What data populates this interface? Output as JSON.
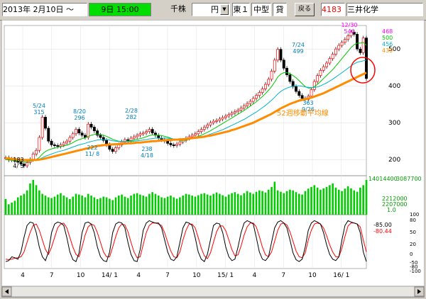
{
  "toolbar": {
    "date": "2013年 2月10日 ～",
    "time": "9日 15:00",
    "unit": "千株",
    "currency": "円",
    "market": "東１",
    "size": "中型",
    "loan": "貸",
    "back": "戻る",
    "code": "4183",
    "name": "三井化学"
  },
  "colors": {
    "price_up": "#ff0000",
    "ma_short": "#ff00ff",
    "ma_13": "#00c800",
    "ma_26": "#00b4c8",
    "ma_52": "#ff8c00",
    "volume": "#00cc00",
    "stoch_k": "#000000",
    "stoch_d": "#ff0000",
    "time_box": "#00dd00"
  },
  "chart_data": {
    "type": "line",
    "price_axis": {
      "ticks": [
        "500",
        "400",
        "300",
        "200"
      ],
      "range": [
        160,
        560
      ]
    },
    "legend_values": [
      "468",
      "500",
      "456",
      "439"
    ],
    "annotations": [
      {
        "date": "4/ 5",
        "price": "183"
      },
      {
        "date": "5/24",
        "price": "315"
      },
      {
        "date": "8/20",
        "price": "296"
      },
      {
        "date": "11/ 8",
        "price": "222"
      },
      {
        "date": "2/28",
        "price": "282"
      },
      {
        "date": "4/18",
        "price": "238"
      },
      {
        "date": "7/24",
        "price": "499"
      },
      {
        "date": "9/26",
        "price": "363"
      },
      {
        "date": "12/30",
        "price": "546"
      }
    ],
    "ma_label": "52週移動平均線",
    "prices": [
      205,
      199,
      201,
      195,
      193,
      188,
      183,
      192,
      200,
      215,
      225,
      260,
      315,
      285,
      250,
      240,
      238,
      236,
      240,
      245,
      250,
      260,
      270,
      282,
      272,
      266,
      260,
      296,
      288,
      278,
      266,
      260,
      252,
      240,
      228,
      222,
      232,
      240,
      248,
      254,
      252,
      258,
      262,
      266,
      270,
      272,
      276,
      282,
      272,
      266,
      258,
      254,
      250,
      244,
      240,
      238,
      242,
      248,
      252,
      258,
      262,
      266,
      270,
      276,
      282,
      288,
      294,
      300,
      304,
      306,
      310,
      314,
      318,
      322,
      326,
      330,
      334,
      340,
      346,
      352,
      358,
      366,
      374,
      382,
      392,
      404,
      418,
      440,
      470,
      499,
      470,
      448,
      430,
      412,
      398,
      385,
      374,
      366,
      363,
      372,
      390,
      412,
      428,
      442,
      452,
      462,
      474,
      486,
      500,
      510,
      518,
      526,
      536,
      546,
      540,
      500,
      490,
      530,
      420
    ],
    "ma13": [
      200,
      199,
      198,
      197,
      196,
      195,
      194,
      194,
      195,
      197,
      200,
      206,
      215,
      222,
      226,
      229,
      231,
      233,
      235,
      237,
      239,
      242,
      246,
      251,
      254,
      257,
      259,
      263,
      266,
      268,
      269,
      268,
      266,
      263,
      259,
      255,
      252,
      250,
      249,
      249,
      250,
      251,
      253,
      255,
      257,
      259,
      262,
      265,
      267,
      267,
      266,
      265,
      263,
      261,
      258,
      255,
      253,
      252,
      252,
      253,
      255,
      257,
      260,
      263,
      266,
      270,
      274,
      278,
      283,
      288,
      293,
      298,
      303,
      308,
      313,
      318,
      323,
      328,
      333,
      339,
      345,
      351,
      357,
      364,
      371,
      379,
      388,
      398,
      410,
      424,
      432,
      436,
      436,
      433,
      428,
      422,
      414,
      406,
      398,
      394,
      394,
      398,
      404,
      412,
      420,
      428,
      436,
      444,
      454,
      464,
      474,
      484,
      494,
      504,
      512,
      516,
      516,
      518,
      510
    ],
    "ma26": [
      205,
      204,
      203,
      202,
      201,
      200,
      199,
      198,
      198,
      198,
      199,
      201,
      205,
      209,
      212,
      215,
      218,
      221,
      223,
      225,
      228,
      231,
      234,
      237,
      240,
      242,
      244,
      247,
      249,
      251,
      253,
      254,
      254,
      254,
      253,
      251,
      250,
      249,
      249,
      249,
      249,
      249,
      250,
      251,
      252,
      253,
      254,
      256,
      257,
      258,
      258,
      258,
      258,
      258,
      257,
      256,
      255,
      255,
      255,
      255,
      256,
      257,
      258,
      260,
      262,
      264,
      266,
      269,
      272,
      275,
      278,
      281,
      285,
      289,
      293,
      297,
      301,
      305,
      309,
      314,
      319,
      324,
      329,
      335,
      341,
      347,
      354,
      361,
      369,
      378,
      385,
      390,
      394,
      397,
      399,
      400,
      400,
      399,
      397,
      396,
      395,
      396,
      397,
      400,
      404,
      408,
      413,
      418,
      424,
      430,
      436,
      442,
      448,
      454,
      460,
      464,
      466,
      468,
      470
    ],
    "ma52": [
      204,
      203,
      202,
      201,
      200,
      200,
      199,
      199,
      199,
      199,
      199,
      200,
      201,
      203,
      205,
      207,
      209,
      211,
      213,
      215,
      217,
      219,
      221,
      223,
      225,
      227,
      229,
      231,
      233,
      235,
      237,
      238,
      239,
      240,
      241,
      241,
      242,
      242,
      243,
      243,
      244,
      244,
      245,
      246,
      246,
      247,
      248,
      249,
      250,
      250,
      251,
      252,
      252,
      253,
      253,
      254,
      254,
      255,
      255,
      256,
      257,
      258,
      259,
      260,
      261,
      262,
      264,
      265,
      267,
      269,
      271,
      273,
      275,
      277,
      280,
      282,
      285,
      288,
      291,
      294,
      297,
      300,
      304,
      308,
      312,
      316,
      320,
      324,
      329,
      334,
      339,
      343,
      347,
      351,
      354,
      357,
      360,
      362,
      364,
      366,
      368,
      371,
      374,
      377,
      380,
      384,
      388,
      392,
      396,
      400,
      404,
      408,
      412,
      416,
      420,
      424,
      428,
      432,
      436
    ],
    "volume_labels": [
      "14014400",
      "3087700",
      "2212000",
      "2207000",
      "1.0"
    ],
    "volume": [
      45,
      30,
      35,
      40,
      50,
      55,
      60,
      70,
      90,
      100,
      85,
      70,
      60,
      55,
      50,
      48,
      52,
      58,
      62,
      55,
      50,
      45,
      52,
      60,
      58,
      55,
      50,
      60,
      55,
      50,
      45,
      48,
      52,
      50,
      46,
      42,
      50,
      55,
      58,
      52,
      48,
      55,
      60,
      62,
      58,
      55,
      52,
      60,
      65,
      60,
      55,
      50,
      48,
      52,
      55,
      50,
      46,
      50,
      55,
      60,
      58,
      55,
      52,
      56,
      60,
      62,
      58,
      55,
      60,
      64,
      60,
      56,
      52,
      58,
      62,
      65,
      60,
      56,
      62,
      68,
      64,
      60,
      66,
      70,
      68,
      64,
      72,
      80,
      95,
      70,
      66,
      62,
      68,
      72,
      70,
      65,
      60,
      58,
      68,
      75,
      80,
      85,
      78,
      72,
      76,
      80,
      85,
      90,
      78,
      72,
      68,
      75,
      82,
      76,
      70,
      66,
      78,
      85,
      100
    ],
    "stoch_ticks": [
      "100",
      "80",
      "50",
      "20",
      "0",
      "-50",
      "-80",
      "-100"
    ],
    "stoch_labels": [
      "-85.00",
      "-80.44",
      "100",
      "50",
      "0",
      "-50",
      "-100"
    ],
    "stoch_k": [
      10,
      12,
      20,
      18,
      15,
      30,
      60,
      85,
      92,
      90,
      70,
      40,
      20,
      12,
      30,
      70,
      88,
      92,
      90,
      85,
      60,
      30,
      14,
      10,
      28,
      70,
      90,
      92,
      88,
      70,
      40,
      20,
      12,
      10,
      30,
      70,
      88,
      92,
      90,
      80,
      50,
      25,
      12,
      10,
      35,
      75,
      90,
      95,
      92,
      90,
      90,
      80,
      55,
      30,
      15,
      12,
      20,
      50,
      80,
      92,
      90,
      85,
      60,
      30,
      15,
      10,
      25,
      55,
      85,
      90,
      88,
      70,
      40,
      20,
      12,
      15,
      40,
      70,
      90,
      95,
      92,
      88,
      60,
      30,
      15,
      12,
      20,
      50,
      80,
      92,
      95,
      90,
      80,
      55,
      28,
      14,
      10,
      15,
      40,
      75,
      90,
      95,
      92,
      88,
      70,
      45,
      25,
      15,
      12,
      20,
      55,
      85,
      95,
      92,
      90,
      88,
      70,
      30,
      10
    ],
    "stoch_d": [
      15,
      14,
      15,
      17,
      18,
      20,
      30,
      50,
      70,
      85,
      88,
      75,
      55,
      35,
      25,
      40,
      60,
      80,
      88,
      90,
      80,
      60,
      40,
      25,
      20,
      40,
      65,
      82,
      88,
      85,
      70,
      50,
      30,
      20,
      20,
      40,
      62,
      80,
      88,
      86,
      72,
      50,
      30,
      18,
      20,
      45,
      70,
      85,
      90,
      90,
      88,
      85,
      70,
      50,
      32,
      20,
      18,
      30,
      55,
      75,
      88,
      88,
      80,
      60,
      38,
      22,
      16,
      28,
      50,
      72,
      84,
      84,
      74,
      55,
      35,
      22,
      24,
      42,
      65,
      82,
      90,
      90,
      82,
      62,
      40,
      24,
      20,
      30,
      52,
      75,
      88,
      90,
      86,
      72,
      52,
      32,
      20,
      18,
      28,
      55,
      75,
      88,
      90,
      88,
      80,
      64,
      45,
      30,
      20,
      20,
      38,
      62,
      84,
      90,
      90,
      88,
      82,
      55,
      30
    ],
    "x_ticks": [
      "4",
      "7",
      "10",
      "14/ 1",
      "4",
      "7",
      "10",
      "15/ 1",
      "4",
      "7",
      "10",
      "16/ 1"
    ]
  }
}
